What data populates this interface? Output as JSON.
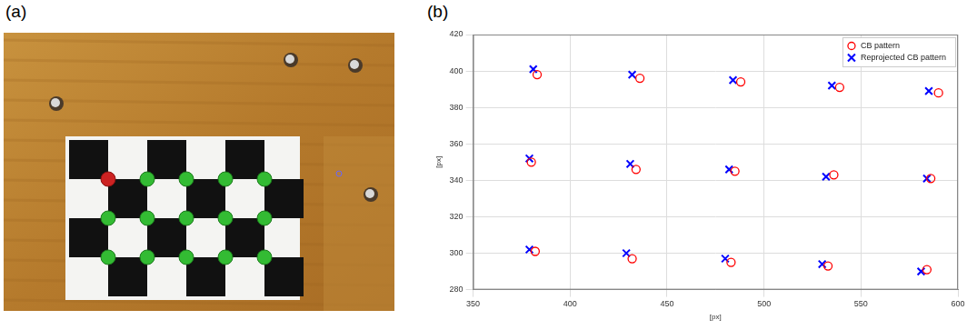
{
  "photo_panel": {
    "panel_label": "(a)"
  },
  "chart_data": {
    "type": "scatter",
    "panel_label": "(b)",
    "x_label": "[px]",
    "y_label": "[px]",
    "xlim": [
      350,
      600
    ],
    "xticks": [
      350,
      400,
      450,
      500,
      550,
      600
    ],
    "ylim": [
      280,
      420
    ],
    "yticks": [
      280,
      300,
      320,
      340,
      360,
      380,
      400,
      420
    ],
    "grid": true,
    "legend": "upper right",
    "series": [
      {
        "name": "CB pattern",
        "color": "#ff0000",
        "marker": "circle",
        "x": [
          383,
          436,
          488,
          539,
          590,
          380,
          434,
          485,
          536,
          586,
          382,
          432,
          483,
          533,
          584
        ],
        "values": [
          398,
          396,
          394,
          391,
          388,
          350,
          346,
          345,
          343,
          341,
          301,
          297,
          295,
          293,
          291
        ]
      },
      {
        "name": "Reprojected CB pattern",
        "color": "#0000ff",
        "marker": "x",
        "x": [
          381,
          432,
          484,
          535,
          585,
          379,
          431,
          482,
          532,
          584,
          379,
          429,
          480,
          530,
          581
        ],
        "values": [
          401,
          398,
          395,
          392,
          389,
          352,
          349,
          346,
          342,
          341,
          302,
          300,
          297,
          294,
          290
        ]
      }
    ]
  }
}
